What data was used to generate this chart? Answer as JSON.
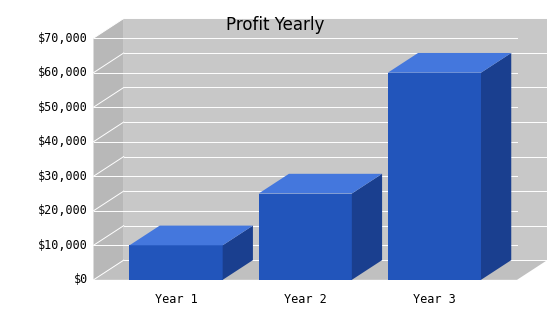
{
  "title": "Profit Yearly",
  "categories": [
    "Year 1",
    "Year 2",
    "Year 3"
  ],
  "values": [
    10000,
    25000,
    60000
  ],
  "bar_color_front": "#2255BB",
  "bar_color_top": "#4477DD",
  "bar_color_side": "#1A3F8F",
  "background_color": "#FFFFFF",
  "wall_back_color": "#C8C8C8",
  "wall_left_color": "#B8B8B8",
  "floor_color": "#C0C0C0",
  "ylim": [
    0,
    70000
  ],
  "yticks": [
    0,
    10000,
    20000,
    30000,
    40000,
    50000,
    60000,
    70000
  ],
  "ytick_labels": [
    "$0",
    "$10,000",
    "$20,000",
    "$30,000",
    "$40,000",
    "$50,000",
    "$60,000",
    "$70,000"
  ],
  "title_fontsize": 12,
  "tick_fontsize": 8.5,
  "grid_color": "#FFFFFF"
}
